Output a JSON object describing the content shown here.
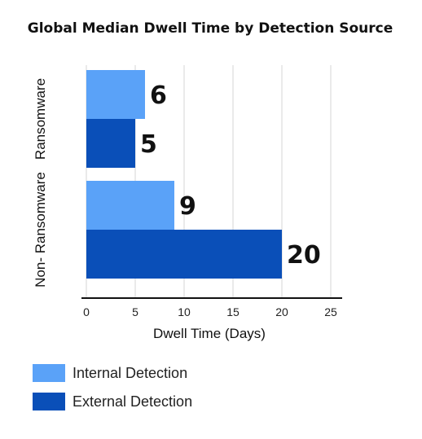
{
  "chart_data": {
    "type": "bar",
    "orientation": "horizontal",
    "title": "Global Median Dwell Time by Detection Source",
    "xlabel": "Dwell Time (Days)",
    "ylabel": "",
    "categories": [
      "Ransomware",
      "Non- Ransomware"
    ],
    "series": [
      {
        "name": "Internal Detection",
        "color": "#5aa2f8",
        "values": [
          6,
          9
        ]
      },
      {
        "name": "External Detection",
        "color": "#0a4fb8",
        "values": [
          5,
          20
        ]
      }
    ],
    "xlim": [
      0,
      25
    ],
    "xticks": [
      "0",
      "5",
      "10",
      "15",
      "20",
      "25"
    ],
    "grid": true,
    "legend_position": "bottom-left",
    "data_labels": true
  }
}
